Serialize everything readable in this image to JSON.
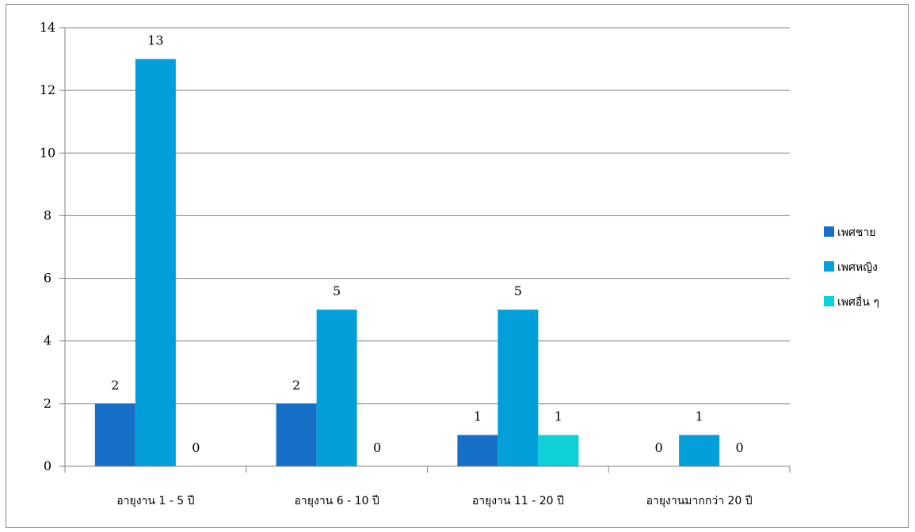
{
  "chart_data": {
    "type": "bar",
    "categories": [
      "อายุงาน 1 - 5 ปี",
      "อายุงาน 6 - 10 ปี",
      "อายุงาน 11 - 20 ปี",
      "อายุงานมากกว่า 20 ปี"
    ],
    "series": [
      {
        "name": "เพศชาย",
        "values": [
          2,
          2,
          1,
          0
        ],
        "color": "#156FC7",
        "labels": [
          "2",
          "2",
          "1",
          "0"
        ]
      },
      {
        "name": "เพศหญิง",
        "values": [
          13,
          5,
          5,
          1
        ],
        "color": "#039FDA",
        "labels": [
          "13",
          "5",
          "5",
          "1"
        ]
      },
      {
        "name": "เพศอื่น ๆ",
        "values": [
          0,
          0,
          1,
          0
        ],
        "color": "#0ED0D8",
        "labels": [
          "0",
          "0",
          "1",
          "0"
        ]
      }
    ],
    "ylim": [
      0,
      14
    ],
    "yticks": [
      "0",
      "2",
      "4",
      "6",
      "8",
      "10",
      "12",
      "14"
    ],
    "grid": true,
    "legend_position": "right"
  }
}
